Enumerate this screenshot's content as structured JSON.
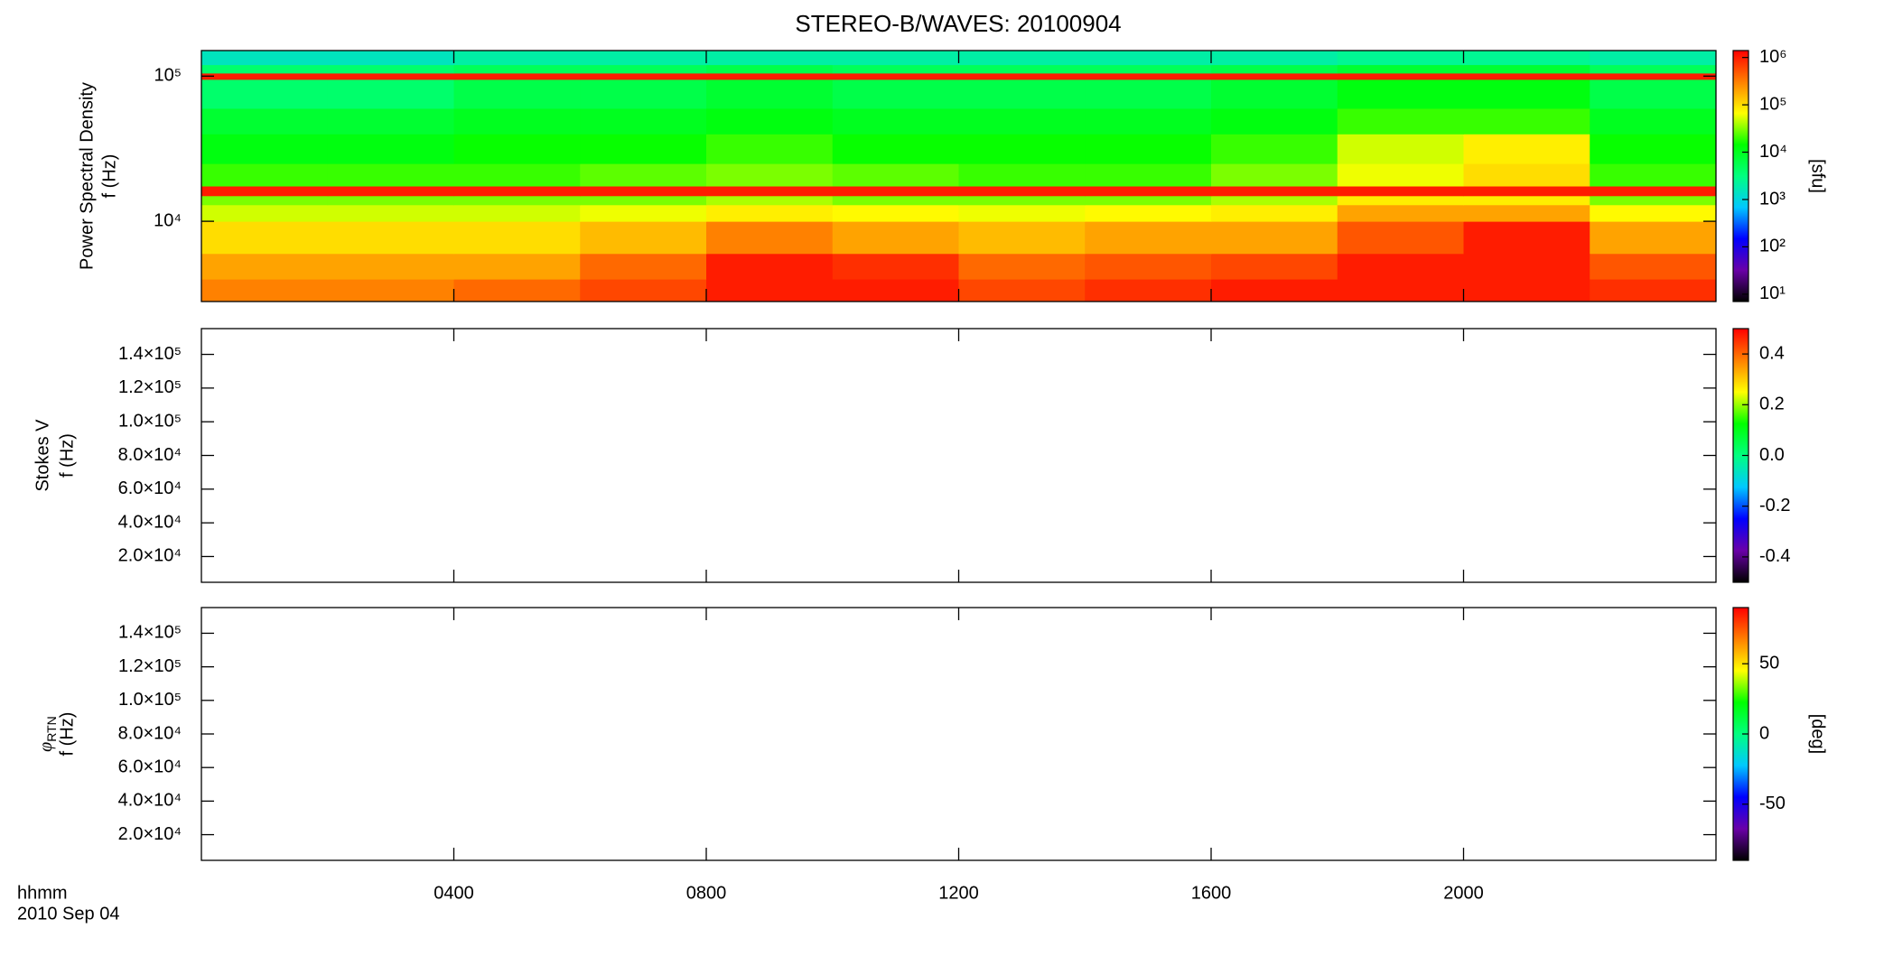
{
  "chart_data": [
    {
      "type": "heatmap",
      "title": "STEREO-B/WAVES: 20100904",
      "ylabel": {
        "text": "Power Spectral Density",
        "unit": "f (Hz)"
      },
      "ylog": true,
      "ylim": [
        2800,
        150000
      ],
      "yticks": [
        {
          "value": 10000,
          "label": "10⁴"
        },
        {
          "value": 100000,
          "label": "10⁵"
        }
      ],
      "xlim": [
        0,
        24
      ],
      "x_edges": [
        0,
        2,
        4,
        6,
        8,
        10,
        12,
        14,
        16,
        18,
        20,
        22,
        24
      ],
      "y_edges": [
        2800,
        4000,
        6000,
        10000,
        13000,
        15000,
        17500,
        25000,
        40000,
        60000,
        95000,
        105000,
        120000,
        150000
      ],
      "z": [
        [
          300000.0,
          300000.0,
          400000.0,
          600000.0,
          1000000.0,
          1000000.0,
          600000.0,
          800000.0,
          1000000.0,
          1000000.0,
          1000000.0,
          800000.0
        ],
        [
          200000.0,
          200000.0,
          200000.0,
          400000.0,
          1000000.0,
          800000.0,
          400000.0,
          500000.0,
          600000.0,
          1000000.0,
          1000000.0,
          500000.0
        ],
        [
          100000.0,
          100000.0,
          100000.0,
          150000.0,
          300000.0,
          200000.0,
          150000.0,
          200000.0,
          200000.0,
          500000.0,
          1000000.0,
          200000.0
        ],
        [
          50000.0,
          50000.0,
          50000.0,
          60000.0,
          80000.0,
          70000.0,
          60000.0,
          70000.0,
          80000.0,
          200000.0,
          200000.0,
          70000.0
        ],
        [
          30000.0,
          30000.0,
          30000.0,
          30000.0,
          40000.0,
          30000.0,
          30000.0,
          30000.0,
          40000.0,
          80000.0,
          80000.0,
          30000.0
        ],
        [
          1000000.0,
          1000000.0,
          1000000.0,
          1000000.0,
          1000000.0,
          1000000.0,
          1000000.0,
          1000000.0,
          1000000.0,
          1000000.0,
          1000000.0,
          1000000.0
        ],
        [
          20000.0,
          20000.0,
          20000.0,
          25000.0,
          30000.0,
          25000.0,
          20000.0,
          20000.0,
          30000.0,
          60000.0,
          100000.0,
          20000.0
        ],
        [
          12000.0,
          12000.0,
          15000.0,
          15000.0,
          20000.0,
          15000.0,
          15000.0,
          15000.0,
          20000.0,
          50000.0,
          80000.0,
          15000.0
        ],
        [
          8000.0,
          8000.0,
          10000.0,
          10000.0,
          12000.0,
          10000.0,
          10000.0,
          10000.0,
          12000.0,
          20000.0,
          20000.0,
          10000.0
        ],
        [
          4000.0,
          4000.0,
          6000.0,
          6000.0,
          8000.0,
          6000.0,
          6000.0,
          6000.0,
          8000.0,
          12000.0,
          12000.0,
          6000.0
        ],
        [
          1000000.0,
          1000000.0,
          1000000.0,
          1000000.0,
          1000000.0,
          1000000.0,
          1000000.0,
          1000000.0,
          1000000.0,
          1000000.0,
          1000000.0,
          1000000.0
        ],
        [
          4000.0,
          4000.0,
          5000.0,
          5000.0,
          6000.0,
          5000.0,
          5000.0,
          5000.0,
          6000.0,
          8000.0,
          8000.0,
          5000.0
        ],
        [
          1500.0,
          1500.0,
          2000.0,
          2000.0,
          2000.0,
          2000.0,
          2000.0,
          2000.0,
          2000.0,
          2500.0,
          2500.0,
          2000.0
        ]
      ],
      "colorscale": [
        "#000000",
        "#6a00a8",
        "#0000ff",
        "#00c8ff",
        "#00ff80",
        "#00ff00",
        "#ffff00",
        "#ff8000",
        "#ff0000"
      ],
      "colorbar": {
        "log": true,
        "lim": [
          7,
          1400000
        ],
        "ticks": [
          {
            "value": 10,
            "label": "10¹"
          },
          {
            "value": 100,
            "label": "10²"
          },
          {
            "value": 1000,
            "label": "10³"
          },
          {
            "value": 10000,
            "label": "10⁴"
          },
          {
            "value": 100000,
            "label": "10⁵"
          },
          {
            "value": 1000000,
            "label": "10⁶"
          }
        ],
        "label": "[sfu]"
      }
    },
    {
      "type": "heatmap",
      "ylabel": {
        "text": "Stokes V",
        "unit": "f (Hz)"
      },
      "ylim": [
        4700,
        155300
      ],
      "yticks": [
        {
          "value": 20000,
          "label": "2.0×10⁴"
        },
        {
          "value": 40000,
          "label": "4.0×10⁴"
        },
        {
          "value": 60000,
          "label": "6.0×10⁴"
        },
        {
          "value": 80000,
          "label": "8.0×10⁴"
        },
        {
          "value": 100000,
          "label": "1.0×10⁵"
        },
        {
          "value": 120000,
          "label": "1.2×10⁵"
        },
        {
          "value": 140000,
          "label": "1.4×10⁵"
        }
      ],
      "xlim": [
        0,
        24
      ],
      "colorscale": [
        "#000000",
        "#6a00a8",
        "#0000ff",
        "#00c8ff",
        "#00ff80",
        "#00ff00",
        "#ffff00",
        "#ff8000",
        "#ff0000"
      ],
      "colorbar": {
        "lim": [
          -0.5,
          0.5
        ],
        "ticks": [
          -0.4,
          -0.2,
          {
            "value": 0,
            "label": "0.0"
          },
          0.2,
          0.4
        ]
      }
    },
    {
      "type": "heatmap",
      "ylabel": {
        "symbol": "φ",
        "subscript": "RTN",
        "unit": "f (Hz)"
      },
      "ylim": [
        4700,
        155300
      ],
      "yticks": [
        {
          "value": 20000,
          "label": "2.0×10⁴"
        },
        {
          "value": 40000,
          "label": "4.0×10⁴"
        },
        {
          "value": 60000,
          "label": "6.0×10⁴"
        },
        {
          "value": 80000,
          "label": "8.0×10⁴"
        },
        {
          "value": 100000,
          "label": "1.0×10⁵"
        },
        {
          "value": 120000,
          "label": "1.2×10⁵"
        },
        {
          "value": 140000,
          "label": "1.4×10⁵"
        }
      ],
      "xlim": [
        0,
        24
      ],
      "xticks": [
        {
          "value": 4,
          "label": "0400"
        },
        {
          "value": 8,
          "label": "0800"
        },
        {
          "value": 12,
          "label": "1200"
        },
        {
          "value": 16,
          "label": "1600"
        },
        {
          "value": 20,
          "label": "2000"
        }
      ],
      "xlabel": "hhmm",
      "xsublabel": "2010 Sep 04",
      "colorscale": [
        "#000000",
        "#6a00a8",
        "#0000ff",
        "#00c8ff",
        "#00ff80",
        "#00ff00",
        "#ffff00",
        "#ff8000",
        "#ff0000"
      ],
      "colorbar": {
        "lim": [
          -90,
          90
        ],
        "ticks": [
          -50,
          0,
          50
        ],
        "label": "[deg]"
      }
    }
  ]
}
